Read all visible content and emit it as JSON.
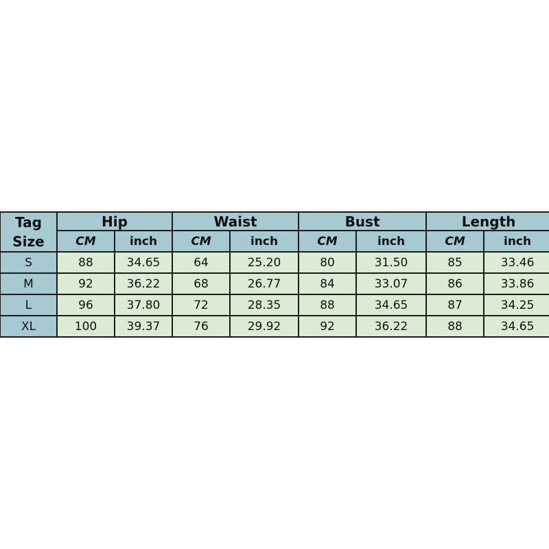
{
  "table": {
    "corner": [
      "Tag",
      "Size"
    ],
    "groups": [
      "Hip",
      "Waist",
      "Bust",
      "Length"
    ],
    "units": [
      "CM",
      "inch"
    ],
    "rows": [
      {
        "size": "S",
        "values": [
          "88",
          "34.65",
          "64",
          "25.20",
          "80",
          "31.50",
          "85",
          "33.46"
        ]
      },
      {
        "size": "M",
        "values": [
          "92",
          "36.22",
          "68",
          "26.77",
          "84",
          "33.07",
          "86",
          "33.86"
        ]
      },
      {
        "size": "L",
        "values": [
          "96",
          "37.80",
          "72",
          "28.35",
          "88",
          "34.65",
          "87",
          "34.25"
        ]
      },
      {
        "size": "XL",
        "values": [
          "100",
          "39.37",
          "76",
          "29.92",
          "92",
          "36.22",
          "88",
          "34.65"
        ]
      }
    ]
  },
  "colors": {
    "header": "#a6c9d2",
    "cell": "#dcebd3",
    "border": "#1a1a1a"
  }
}
